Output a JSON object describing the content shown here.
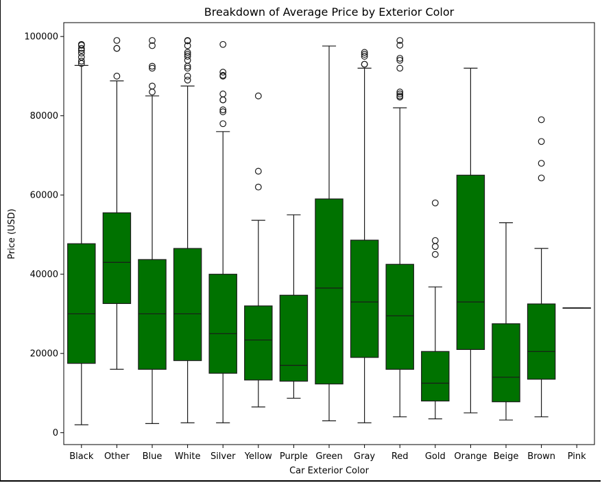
{
  "chart_data": {
    "type": "box",
    "title": "Breakdown of Average Price by Exterior Color",
    "xlabel": "Car Exterior Color",
    "ylabel": "Price (USD)",
    "ylim": [
      -3000,
      103500
    ],
    "yticks": [
      0,
      20000,
      40000,
      60000,
      80000,
      100000
    ],
    "ytick_labels": [
      "0",
      "20000",
      "40000",
      "60000",
      "80000",
      "100000"
    ],
    "box_color": "#007200",
    "grid": false,
    "boxes": [
      {
        "category": "Black",
        "whislo": 2000,
        "q1": 17500,
        "med": 30000,
        "q3": 47700,
        "whishi": 92700,
        "fliers": [
          93200,
          93800,
          94800,
          95800,
          96500,
          97000,
          97800,
          98000
        ]
      },
      {
        "category": "Other",
        "whislo": 16000,
        "q1": 32600,
        "med": 43000,
        "q3": 55500,
        "whishi": 88800,
        "fliers": [
          90000,
          97000,
          97000,
          99000
        ]
      },
      {
        "category": "Blue",
        "whislo": 2300,
        "q1": 16000,
        "med": 30000,
        "q3": 43700,
        "whishi": 85000,
        "fliers": [
          86000,
          87500,
          92000,
          92500,
          97700,
          99000
        ]
      },
      {
        "category": "White",
        "whislo": 2500,
        "q1": 18200,
        "med": 30000,
        "q3": 46500,
        "whishi": 87500,
        "fliers": [
          89000,
          90000,
          92000,
          92500,
          94000,
          95000,
          95500,
          96000,
          97700,
          98900,
          99000
        ]
      },
      {
        "category": "Silver",
        "whislo": 2500,
        "q1": 15000,
        "med": 25000,
        "q3": 40000,
        "whishi": 76000,
        "fliers": [
          78000,
          81000,
          81500,
          84000,
          84000,
          85500,
          90000,
          90200,
          91000,
          98000
        ]
      },
      {
        "category": "Yellow",
        "whislo": 6500,
        "q1": 13300,
        "med": 23400,
        "q3": 32000,
        "whishi": 53600,
        "fliers": [
          62000,
          66000,
          85000
        ]
      },
      {
        "category": "Purple",
        "whislo": 8700,
        "q1": 13000,
        "med": 17000,
        "q3": 34700,
        "whishi": 55000,
        "fliers": []
      },
      {
        "category": "Green",
        "whislo": 3000,
        "q1": 12300,
        "med": 36500,
        "q3": 59000,
        "whishi": 97600,
        "fliers": []
      },
      {
        "category": "Gray",
        "whislo": 2500,
        "q1": 19000,
        "med": 33000,
        "q3": 48600,
        "whishi": 92000,
        "fliers": [
          93000,
          93000,
          95000,
          95500,
          96000
        ]
      },
      {
        "category": "Red",
        "whislo": 4000,
        "q1": 16000,
        "med": 29500,
        "q3": 42500,
        "whishi": 82000,
        "fliers": [
          84700,
          85000,
          85500,
          86000,
          92000,
          94000,
          94500,
          97800,
          99000
        ]
      },
      {
        "category": "Gold",
        "whislo": 3500,
        "q1": 8000,
        "med": 12500,
        "q3": 20500,
        "whishi": 36800,
        "fliers": [
          45000,
          47000,
          48500,
          58000
        ]
      },
      {
        "category": "Orange",
        "whislo": 5000,
        "q1": 21000,
        "med": 33000,
        "q3": 65000,
        "whishi": 92000,
        "fliers": []
      },
      {
        "category": "Beige",
        "whislo": 3200,
        "q1": 7800,
        "med": 14000,
        "q3": 27500,
        "whishi": 53000,
        "fliers": []
      },
      {
        "category": "Brown",
        "whislo": 4000,
        "q1": 13500,
        "med": 20500,
        "q3": 32500,
        "whishi": 46500,
        "fliers": [
          64300,
          68000,
          73500,
          79000
        ]
      },
      {
        "category": "Pink",
        "whislo": 31500,
        "q1": 31500,
        "med": 31500,
        "q3": 31500,
        "whishi": 31500,
        "fliers": []
      }
    ]
  }
}
